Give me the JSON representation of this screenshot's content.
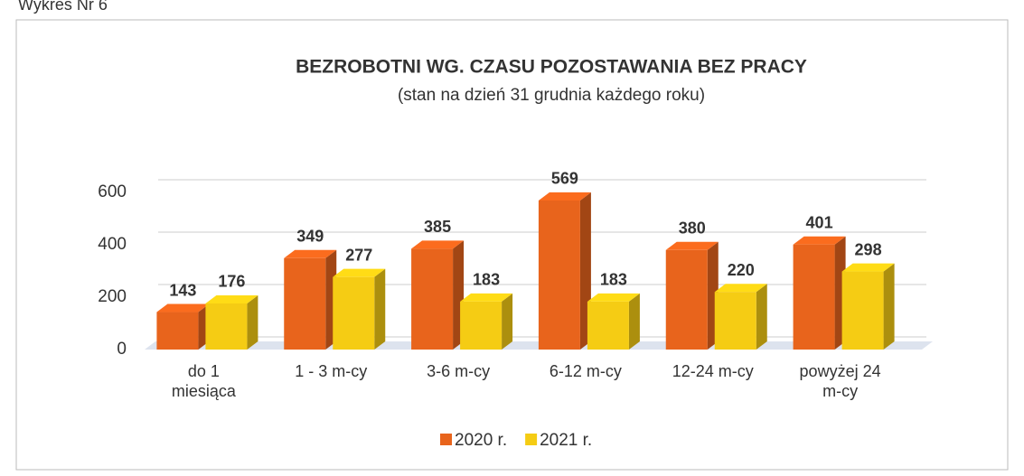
{
  "caption": "Wykres Nr 6",
  "chart_data": {
    "type": "bar3d",
    "title": "BEZROBOTNI WG. CZASU POZOSTAWANIA BEZ PRACY",
    "subtitle": "(stan na dzień 31 grudnia każdego roku)",
    "categories": [
      "do 1 miesiąca",
      "1 - 3 m-cy",
      "3-6 m-cy",
      "6-12 m-cy",
      "12-24 m-cy",
      "powyżej 24 m-cy"
    ],
    "series": [
      {
        "name": "2020 r.",
        "color": "#e8641c",
        "values": [
          143,
          349,
          385,
          569,
          380,
          401
        ]
      },
      {
        "name": "2021 r.",
        "color": "#f5cc14",
        "values": [
          176,
          277,
          183,
          183,
          220,
          298
        ]
      }
    ],
    "ylim": [
      0,
      600
    ],
    "yticks": [
      0,
      200,
      400,
      600
    ],
    "grid": true,
    "legend": "bottom"
  }
}
